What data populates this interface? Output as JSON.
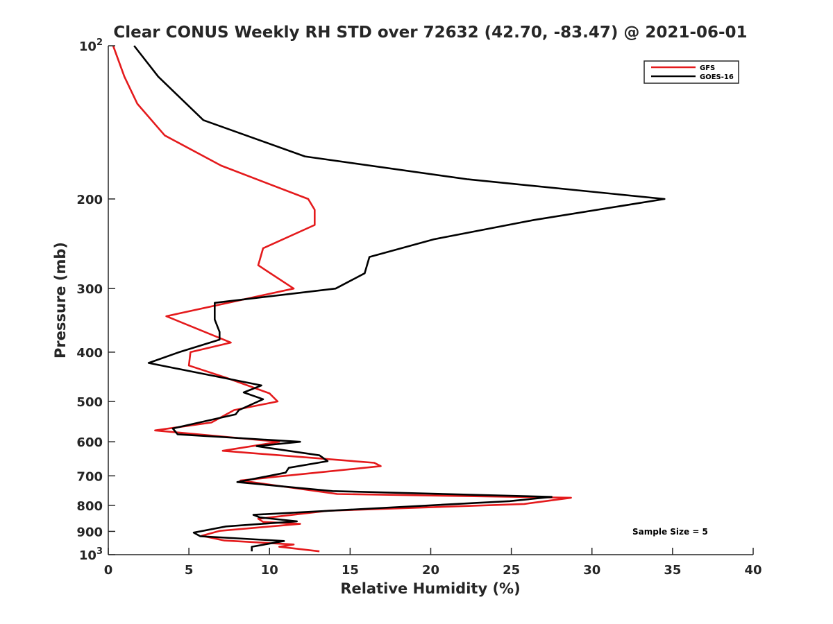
{
  "chart_data": {
    "type": "line",
    "title": "Clear CONUS Weekly RH STD over 72632 (42.70, -83.47) @ 2021-06-01",
    "xlabel": "Relative Humidity (%)",
    "ylabel": "Pressure (mb)",
    "xlim": [
      0,
      40
    ],
    "ylim": [
      100,
      1000
    ],
    "yscale": "log",
    "y_reversed": true,
    "xticks": [
      "0",
      "5",
      "10",
      "15",
      "20",
      "25",
      "30",
      "35",
      "40"
    ],
    "yticks": [
      {
        "value": 100,
        "base": "10",
        "exp": "2"
      },
      {
        "value": 200,
        "label": "200"
      },
      {
        "value": 300,
        "label": "300"
      },
      {
        "value": 400,
        "label": "400"
      },
      {
        "value": 500,
        "label": "500"
      },
      {
        "value": 600,
        "label": "600"
      },
      {
        "value": 700,
        "label": "700"
      },
      {
        "value": 800,
        "label": "800"
      },
      {
        "value": 900,
        "label": "900"
      },
      {
        "value": 1000,
        "base": "10",
        "exp": "3"
      }
    ],
    "grid": false,
    "legend_position": "top-right",
    "annotation": "Sample Size = 5",
    "series": [
      {
        "name": "GFS",
        "color": "#e41a1c",
        "points": [
          [
            0.3,
            100
          ],
          [
            1.0,
            115
          ],
          [
            1.8,
            130
          ],
          [
            3.5,
            150
          ],
          [
            7.0,
            172
          ],
          [
            12.4,
            200
          ],
          [
            12.8,
            210
          ],
          [
            12.8,
            225
          ],
          [
            9.6,
            250
          ],
          [
            9.3,
            270
          ],
          [
            11.5,
            300
          ],
          [
            3.6,
            340
          ],
          [
            7.6,
            383
          ],
          [
            5.1,
            400
          ],
          [
            5.0,
            425
          ],
          [
            7.4,
            450
          ],
          [
            10.0,
            482
          ],
          [
            10.5,
            500
          ],
          [
            7.8,
            520
          ],
          [
            6.4,
            550
          ],
          [
            2.9,
            570
          ],
          [
            10.6,
            600
          ],
          [
            7.1,
            625
          ],
          [
            16.5,
            660
          ],
          [
            16.9,
            670
          ],
          [
            10.0,
            705
          ],
          [
            8.2,
            715
          ],
          [
            14.2,
            760
          ],
          [
            28.7,
            773
          ],
          [
            25.8,
            795
          ],
          [
            13.6,
            820
          ],
          [
            9.3,
            850
          ],
          [
            9.6,
            862
          ],
          [
            11.9,
            870
          ],
          [
            6.9,
            898
          ],
          [
            5.8,
            918
          ],
          [
            7.2,
            938
          ],
          [
            11.5,
            955
          ],
          [
            10.6,
            965
          ],
          [
            13.1,
            985
          ]
        ]
      },
      {
        "name": "GOES-16",
        "color": "#000000",
        "points": [
          [
            1.6,
            100
          ],
          [
            3.1,
            115
          ],
          [
            5.9,
            140
          ],
          [
            12.2,
            165
          ],
          [
            22.3,
            183
          ],
          [
            34.5,
            200
          ],
          [
            26.4,
            220
          ],
          [
            20.2,
            240
          ],
          [
            16.2,
            260
          ],
          [
            15.9,
            280
          ],
          [
            14.1,
            300
          ],
          [
            6.6,
            320
          ],
          [
            6.6,
            345
          ],
          [
            6.9,
            365
          ],
          [
            6.9,
            378
          ],
          [
            4.4,
            400
          ],
          [
            2.5,
            420
          ],
          [
            9.5,
            465
          ],
          [
            8.4,
            480
          ],
          [
            9.6,
            495
          ],
          [
            8.1,
            520
          ],
          [
            7.9,
            530
          ],
          [
            4.0,
            565
          ],
          [
            4.3,
            580
          ],
          [
            11.9,
            600
          ],
          [
            9.2,
            612
          ],
          [
            13.1,
            638
          ],
          [
            13.6,
            655
          ],
          [
            11.2,
            675
          ],
          [
            11.0,
            690
          ],
          [
            8.0,
            720
          ],
          [
            13.9,
            750
          ],
          [
            27.5,
            770
          ],
          [
            24.9,
            785
          ],
          [
            9.0,
            835
          ],
          [
            9.4,
            845
          ],
          [
            11.7,
            860
          ],
          [
            7.3,
            880
          ],
          [
            5.3,
            905
          ],
          [
            5.7,
            920
          ],
          [
            10.9,
            940
          ],
          [
            8.9,
            965
          ],
          [
            8.9,
            985
          ]
        ]
      }
    ]
  }
}
